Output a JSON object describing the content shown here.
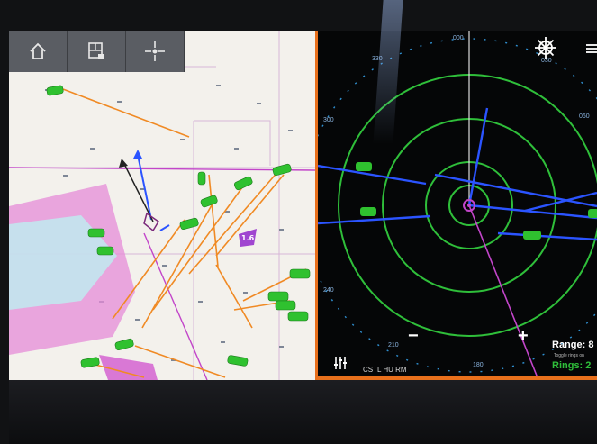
{
  "toolbar": {
    "home": {
      "icon": "home-icon"
    },
    "split": {
      "icon": "split-screen-icon"
    },
    "position": {
      "icon": "crosshair-icon"
    }
  },
  "chart": {
    "depth_marker_label": "1.6"
  },
  "radar": {
    "settings_icon": "helm-wheel-icon",
    "zoom_out_label": "−",
    "zoom_in_label": "+",
    "adjust_icon": "sliders-icon",
    "status_text": "CSTL HU RM",
    "range_label": "Range: 8",
    "rings_label": "Rings: 2",
    "range_note": "Toggle rings on",
    "bearing_labels": [
      "000",
      "030",
      "060",
      "270",
      "300",
      "330",
      "240",
      "210",
      "180"
    ]
  },
  "colors": {
    "vessel": "#2fc12f",
    "track_orange": "#f08a24",
    "radar_ring": "#2fbf3a",
    "heading_line": "#2b54ff",
    "divider": "#e8701c",
    "purple": "#c245c9"
  }
}
